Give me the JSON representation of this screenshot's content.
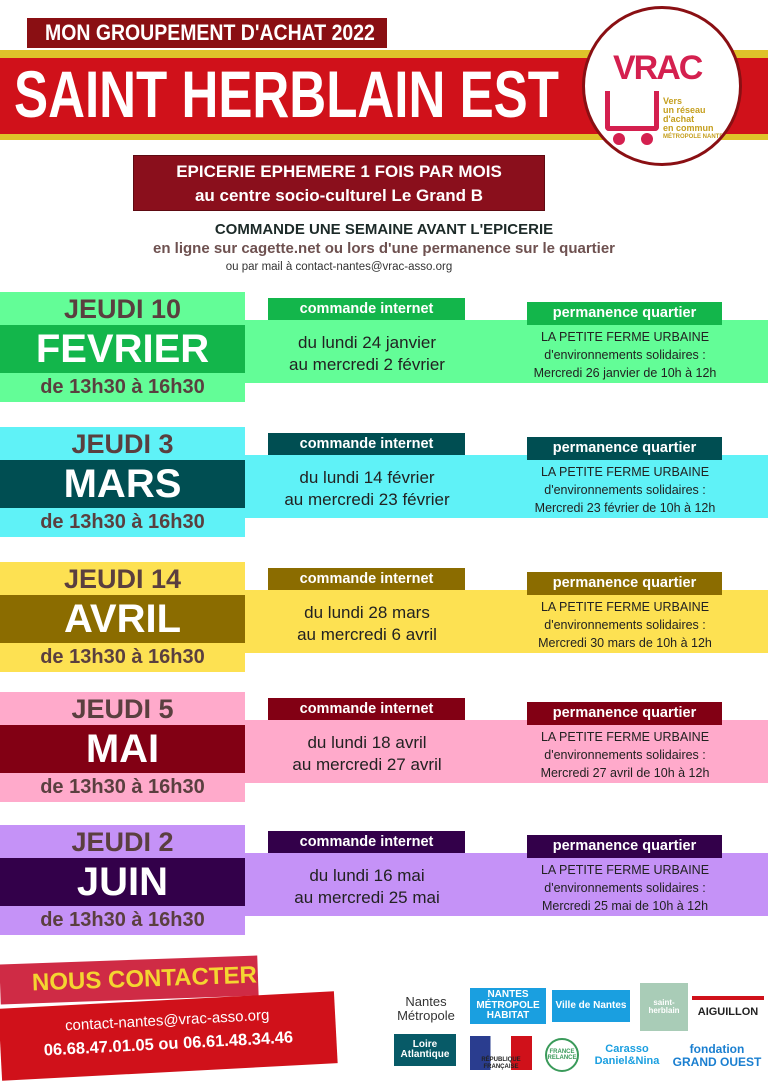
{
  "header": {
    "kicker": "MON GROUPEMENT D'ACHAT 2022",
    "title": "SAINT HERBLAIN EST",
    "logo": {
      "brand": "VRAC",
      "tagline": [
        "Vers",
        "un réseau",
        "d'achat",
        "en commun",
        "MÉTROPOLE NANTES"
      ]
    }
  },
  "epicerie": {
    "line1": "EPICERIE EPHEMERE 1 FOIS PAR MOIS",
    "line2": "au centre socio-culturel Le Grand B"
  },
  "commande": {
    "line1": "COMMANDE UNE SEMAINE AVANT L'EPICERIE",
    "line2": "en ligne sur cagette.net ou lors d'une permanence sur le quartier",
    "line3": "ou par mail à contact-nantes@vrac-asso.org"
  },
  "labels": {
    "order_tag": "commande internet",
    "perm_tag": "permanence quartier"
  },
  "sessions": [
    {
      "day": "JEUDI 10",
      "month": "FEVRIER",
      "hours": "de 13h30 à 16h30",
      "order": [
        "du lundi 24 janvier",
        "au mercredi 2 février"
      ],
      "perm": [
        "LA PETITE FERME URBAINE",
        "d'environnements solidaires :",
        "Mercredi 26 janvier de 10h à 12h"
      ],
      "light": "#63fd97",
      "dark": "#13b64b"
    },
    {
      "day": "JEUDI 3",
      "month": "MARS",
      "hours": "de 13h30 à 16h30",
      "order": [
        "du lundi 14 février",
        "au mercredi 23 février"
      ],
      "perm": [
        "LA PETITE FERME URBAINE",
        "d'environnements solidaires :",
        "Mercredi 23 février de 10h à 12h"
      ],
      "light": "#5ff2f7",
      "dark": "#004e52"
    },
    {
      "day": "JEUDI 14",
      "month": "AVRIL",
      "hours": "de 13h30 à 16h30",
      "order": [
        "du lundi 28 mars",
        "au mercredi 6 avril"
      ],
      "perm": [
        "LA PETITE FERME URBAINE",
        "d'environnements solidaires :",
        "Mercredi 30 mars de 10h à 12h"
      ],
      "light": "#fde152",
      "dark": "#8b6c00"
    },
    {
      "day": "JEUDI 5",
      "month": "MAI",
      "hours": "de 13h30 à 16h30",
      "order": [
        "du lundi 18 avril",
        "au mercredi 27 avril"
      ],
      "perm": [
        "LA PETITE FERME URBAINE",
        "d'environnements solidaires :",
        "Mercredi 27 avril de 10h à 12h"
      ],
      "light": "#ffaacb",
      "dark": "#820014"
    },
    {
      "day": "JEUDI 2",
      "month": "JUIN",
      "hours": "de 13h30 à 16h30",
      "order": [
        "du lundi 16 mai",
        "au mercredi 25 mai"
      ],
      "perm": [
        "LA PETITE FERME URBAINE",
        "d'environnements solidaires :",
        "Mercredi 25 mai de 10h à 12h"
      ],
      "light": "#c592f7",
      "dark": "#33004a"
    }
  ],
  "contact": {
    "title": "NOUS CONTACTER",
    "email": "contact-nantes@vrac-asso.org",
    "phones": "06.68.47.01.05 ou 06.61.48.34.46"
  },
  "partners": [
    "Nantes Métropole",
    "NANTES MÉTROPOLE HABITAT",
    "Ville de Nantes",
    "saint-herblain",
    "AIGUILLON",
    "Loire Atlantique",
    "RÉPUBLIQUE FRANÇAISE",
    "FRANCE RELANCE",
    "Carasso Daniel&Nina",
    "fondation GRAND OUEST"
  ]
}
